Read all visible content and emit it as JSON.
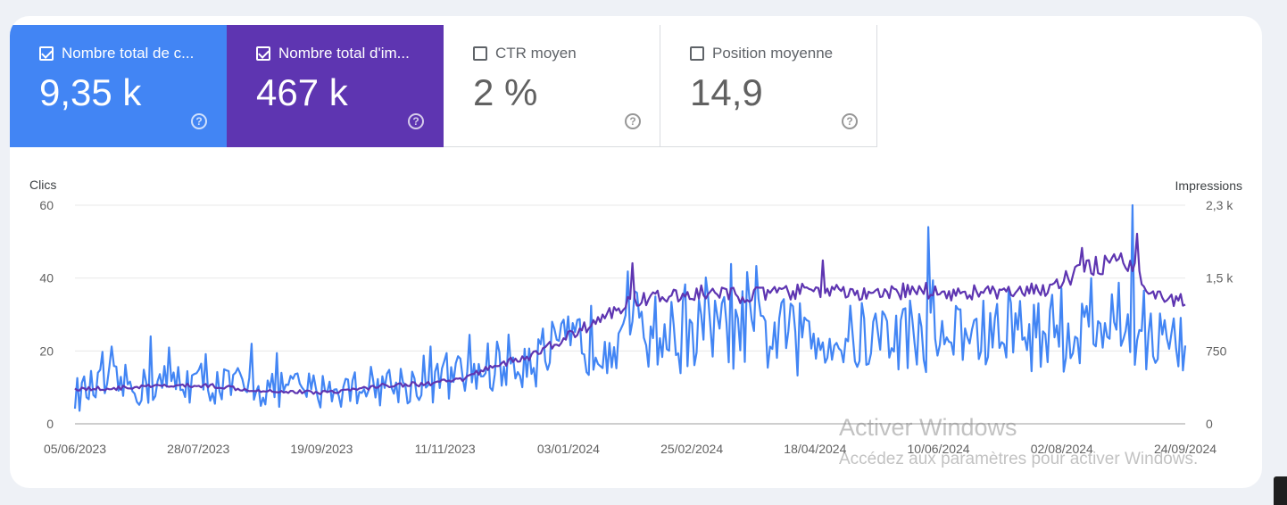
{
  "metrics": [
    {
      "label": "Nombre total de c...",
      "value": "9,35 k",
      "checked": true,
      "color": "#4285f4",
      "help_icon": "question-circle-icon"
    },
    {
      "label": "Nombre total d'im...",
      "value": "467 k",
      "checked": true,
      "color": "#5e35b1",
      "help_icon": "question-circle-icon"
    },
    {
      "label": "CTR moyen",
      "value": "2 %",
      "checked": false,
      "help_icon": "question-circle-icon"
    },
    {
      "label": "Position moyenne",
      "value": "14,9",
      "checked": false,
      "help_icon": "question-circle-icon"
    }
  ],
  "watermark": {
    "line1": "Activer Windows",
    "line2": "Accédez aux paramètres pour activer Windows."
  },
  "chart_data": {
    "type": "line",
    "title": "",
    "y_left_label": "Clics",
    "y_right_label": "Impressions",
    "y_left_range": [
      0,
      60
    ],
    "y_right_range": [
      0,
      2300
    ],
    "y_left_ticks": [
      "0",
      "20",
      "40",
      "60"
    ],
    "y_right_ticks": [
      "0",
      "750",
      "1,5 k",
      "2,3 k"
    ],
    "x_start": "2023-06-05",
    "x_end": "2024-10-01",
    "x_ticks": [
      "05/06/2023",
      "28/07/2023",
      "19/09/2023",
      "11/11/2023",
      "03/01/2024",
      "25/02/2024",
      "18/04/2024",
      "10/06/2024",
      "02/08/2024",
      "24/09/2024"
    ],
    "grid": true,
    "series": [
      {
        "name": "Clics",
        "axis": "left",
        "color": "#4285f4",
        "keypoints": [
          [
            "2023-06-05",
            8
          ],
          [
            "2023-06-20",
            11
          ],
          [
            "2023-07-05",
            10
          ],
          [
            "2023-07-20",
            12
          ],
          [
            "2023-08-05",
            11
          ],
          [
            "2023-08-20",
            9
          ],
          [
            "2023-09-05",
            10
          ],
          [
            "2023-09-20",
            9
          ],
          [
            "2023-10-05",
            10
          ],
          [
            "2023-10-20",
            11
          ],
          [
            "2023-11-05",
            11
          ],
          [
            "2023-11-20",
            13
          ],
          [
            "2023-12-05",
            16
          ],
          [
            "2023-12-20",
            18
          ],
          [
            "2024-01-03",
            20
          ],
          [
            "2024-01-20",
            24
          ],
          [
            "2024-02-05",
            26
          ],
          [
            "2024-02-20",
            24
          ],
          [
            "2024-03-05",
            25
          ],
          [
            "2024-03-20",
            26
          ],
          [
            "2024-04-05",
            24
          ],
          [
            "2024-04-20",
            23
          ],
          [
            "2024-05-05",
            23
          ],
          [
            "2024-05-20",
            24
          ],
          [
            "2024-06-05",
            25
          ],
          [
            "2024-06-20",
            24
          ],
          [
            "2024-07-05",
            24
          ],
          [
            "2024-07-20",
            25
          ],
          [
            "2024-08-05",
            25
          ],
          [
            "2024-08-20",
            25
          ],
          [
            "2024-09-05",
            28
          ],
          [
            "2024-09-20",
            23
          ],
          [
            "2024-10-01",
            20
          ]
        ],
        "spikes": [
          [
            "2023-07-08",
            24
          ],
          [
            "2023-08-21",
            22
          ],
          [
            "2024-06-11",
            54
          ],
          [
            "2024-09-08",
            60
          ],
          [
            "2024-08-21",
            40
          ]
        ]
      },
      {
        "name": "Impressions",
        "axis": "right",
        "color": "#5e35b1",
        "keypoints": [
          [
            "2023-06-05",
            370
          ],
          [
            "2023-06-20",
            370
          ],
          [
            "2023-07-05",
            390
          ],
          [
            "2023-07-20",
            400
          ],
          [
            "2023-08-05",
            400
          ],
          [
            "2023-08-20",
            360
          ],
          [
            "2023-09-05",
            340
          ],
          [
            "2023-09-20",
            330
          ],
          [
            "2023-10-05",
            360
          ],
          [
            "2023-10-20",
            410
          ],
          [
            "2023-11-05",
            420
          ],
          [
            "2023-11-20",
            460
          ],
          [
            "2023-12-05",
            620
          ],
          [
            "2023-12-20",
            700
          ],
          [
            "2024-01-03",
            880
          ],
          [
            "2024-01-20",
            1100
          ],
          [
            "2024-02-05",
            1320
          ],
          [
            "2024-02-20",
            1330
          ],
          [
            "2024-03-05",
            1380
          ],
          [
            "2024-03-20",
            1350
          ],
          [
            "2024-04-05",
            1370
          ],
          [
            "2024-04-20",
            1400
          ],
          [
            "2024-05-05",
            1380
          ],
          [
            "2024-05-20",
            1340
          ],
          [
            "2024-06-05",
            1420
          ],
          [
            "2024-06-20",
            1370
          ],
          [
            "2024-07-05",
            1390
          ],
          [
            "2024-07-20",
            1360
          ],
          [
            "2024-08-05",
            1450
          ],
          [
            "2024-08-20",
            1650
          ],
          [
            "2024-09-05",
            1700
          ],
          [
            "2024-09-20",
            1330
          ],
          [
            "2024-10-01",
            1290
          ]
        ],
        "spikes": [
          [
            "2024-02-03",
            1690
          ],
          [
            "2024-04-26",
            1720
          ],
          [
            "2024-08-17",
            1850
          ],
          [
            "2024-09-10",
            2000
          ]
        ]
      }
    ]
  }
}
